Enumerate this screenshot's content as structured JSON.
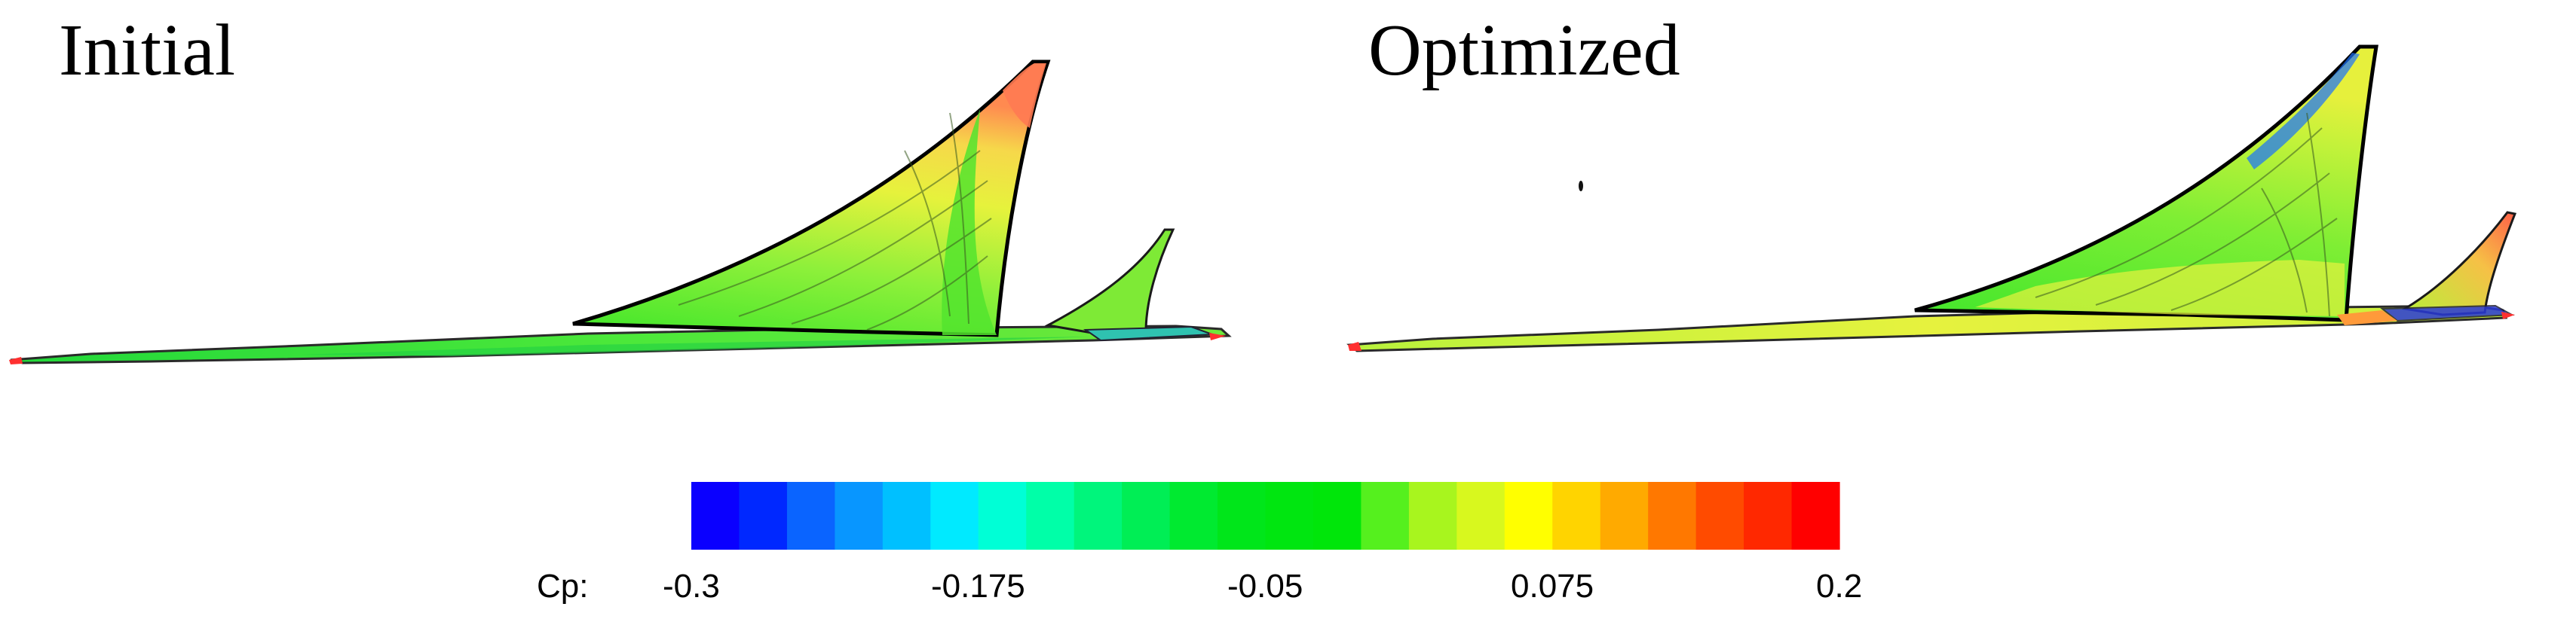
{
  "panels": [
    {
      "title": "Initial"
    },
    {
      "title": "Optimized"
    }
  ],
  "colorbar": {
    "variable_label": "Cp:",
    "min": -0.3,
    "max": 0.2,
    "tick_labels": [
      "-0.3",
      "-0.175",
      "-0.05",
      "0.075",
      "0.2"
    ],
    "colors": [
      "#0a00ff",
      "#0028ff",
      "#0a64ff",
      "#0896ff",
      "#00c0ff",
      "#00eaff",
      "#00ffd6",
      "#00ffa8",
      "#00f57c",
      "#00ee55",
      "#00ea30",
      "#00e61a",
      "#00e610",
      "#00e60a",
      "#55f01e",
      "#a8f51e",
      "#d8f81e",
      "#ffff00",
      "#ffd400",
      "#ffaa00",
      "#ff7800",
      "#ff4b00",
      "#ff2800",
      "#ff0000"
    ]
  }
}
